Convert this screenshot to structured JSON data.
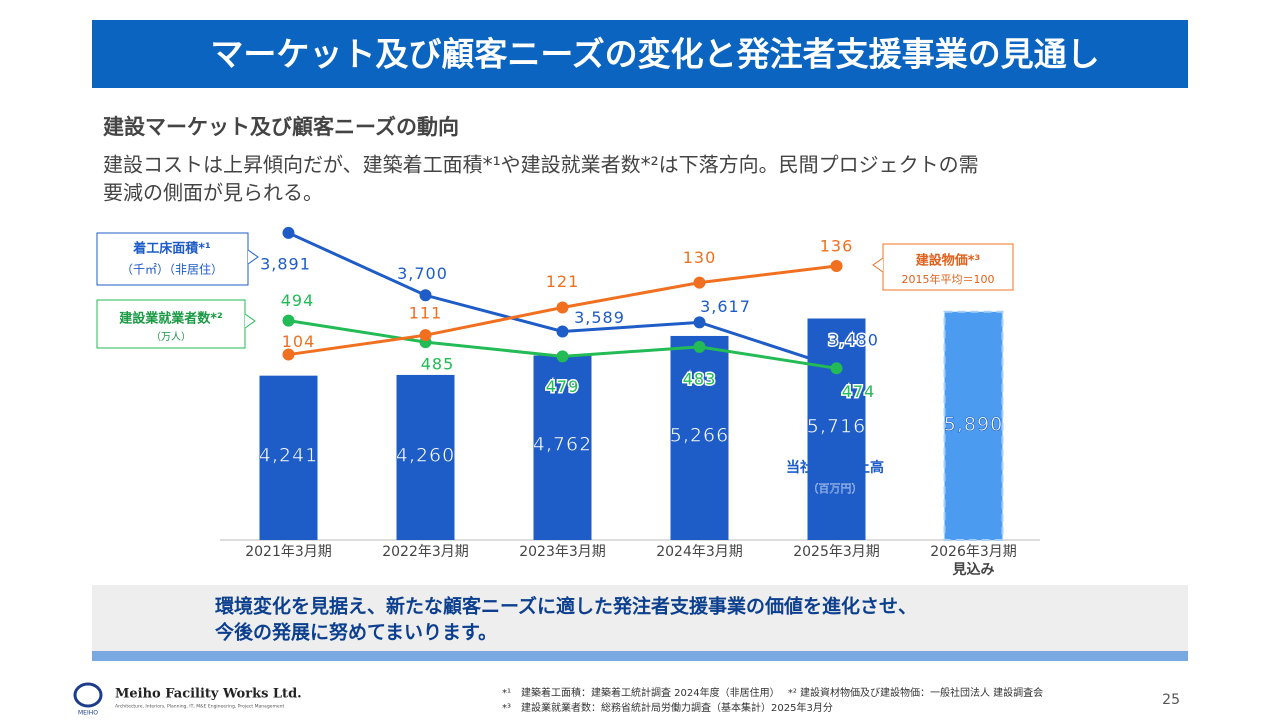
{
  "title": "マーケット及び顧客ニーズの変化と発注者支援事業の見通し",
  "heading": "建設マーケット及び顧客ニーズの動向",
  "description": [
    "建設コストは上昇傾向だが、建築着工面積*¹や建設就業者数*²は下落方向。民間プロジェクトの需",
    "要減の側面が見られる。"
  ],
  "chart_data": {
    "type": "bar",
    "categories": [
      "2021年3月期",
      "2022年3月期",
      "2023年3月期",
      "2024年3月期",
      "2025年3月期",
      "2026年3月期"
    ],
    "forecast_note": "見込み",
    "bar_series": {
      "name": "当社通期売上高",
      "unit": "（百万円）",
      "color": "#1e5cc8",
      "forecast_color": "#4b9cf0",
      "values": [
        4241,
        4260,
        4762,
        5266,
        5716,
        5890
      ],
      "value_labels": [
        "4,241",
        "4,260",
        "4,762",
        "5,266",
        "5,716",
        "5,890"
      ],
      "ylim": [
        0,
        8000
      ]
    },
    "series": [
      {
        "name": "着工床面積*¹",
        "unit": "（千㎡）（非居住）",
        "color": "#1e5cc8",
        "values": [
          3891,
          3700,
          3589,
          3617,
          3480,
          null
        ],
        "value_labels": [
          "3,891",
          "3,700",
          "3,589",
          "3,617",
          "3,480",
          null
        ],
        "ylim": [
          2950,
          3900
        ]
      },
      {
        "name": "建設業就業者数*²",
        "unit": "（万人）",
        "color": "#22bb55",
        "values": [
          494,
          485,
          479,
          483,
          474,
          null
        ],
        "ylim": [
          402,
          532
        ]
      },
      {
        "name": "建設物価*³",
        "unit": "2015年平均＝100",
        "color": "#f07020",
        "values": [
          104,
          111,
          121,
          130,
          136,
          null
        ],
        "ylim": [
          37,
          149
        ]
      }
    ]
  },
  "conclusion": [
    "環境変化を見据え、新たな顧客ニーズに適した発注者支援事業の価値を進化させ、",
    "今後の発展に努めてまいります。"
  ],
  "footnotes": [
    "*¹　建築着工面積：建築着工統計調査 2024年度（非居住用）　 *² 建設資材物価及び建設物価：一般社団法人 建設調査会",
    "*³　建設業就業者数：総務省統計局労働力調査（基本集計）2025年3月分"
  ],
  "company": "Meiho Facility Works Ltd.",
  "company_sub": "Architecture, Interiors, Planning, IT, M&E Engineering, Project Management",
  "logo_text": "MEIHO",
  "page_number": "25"
}
